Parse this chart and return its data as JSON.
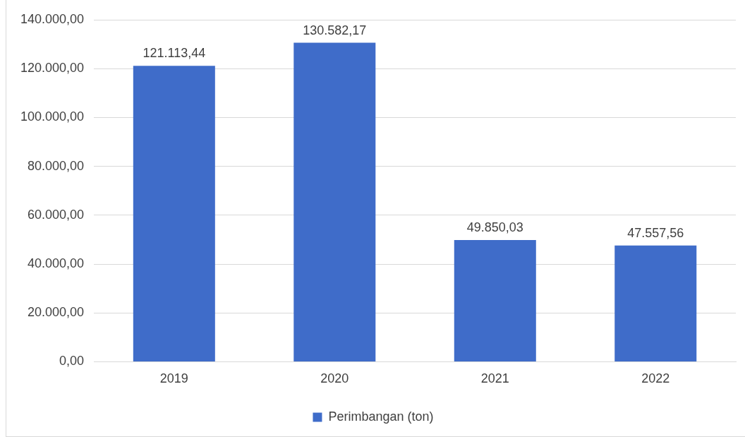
{
  "chart_data": {
    "type": "bar",
    "categories": [
      "2019",
      "2020",
      "2021",
      "2022"
    ],
    "series": [
      {
        "name": "Perimbangan (ton)",
        "color": "#3f6cc9",
        "values": [
          121113.44,
          130582.17,
          49850.03,
          47557.56
        ],
        "value_labels": [
          "121.113,44",
          "130.582,17",
          "49.850,03",
          "47.557,56"
        ]
      }
    ],
    "ylim": [
      0,
      140000
    ],
    "yticks": [
      {
        "value": 0,
        "label": "0,00"
      },
      {
        "value": 20000,
        "label": "20.000,00"
      },
      {
        "value": 40000,
        "label": "40.000,00"
      },
      {
        "value": 60000,
        "label": "60.000,00"
      },
      {
        "value": 80000,
        "label": "80.000,00"
      },
      {
        "value": 100000,
        "label": "100.000,00"
      },
      {
        "value": 120000,
        "label": "120.000,00"
      },
      {
        "value": 140000,
        "label": "140.000,00"
      }
    ],
    "grid": "y",
    "legend": "bottom"
  }
}
